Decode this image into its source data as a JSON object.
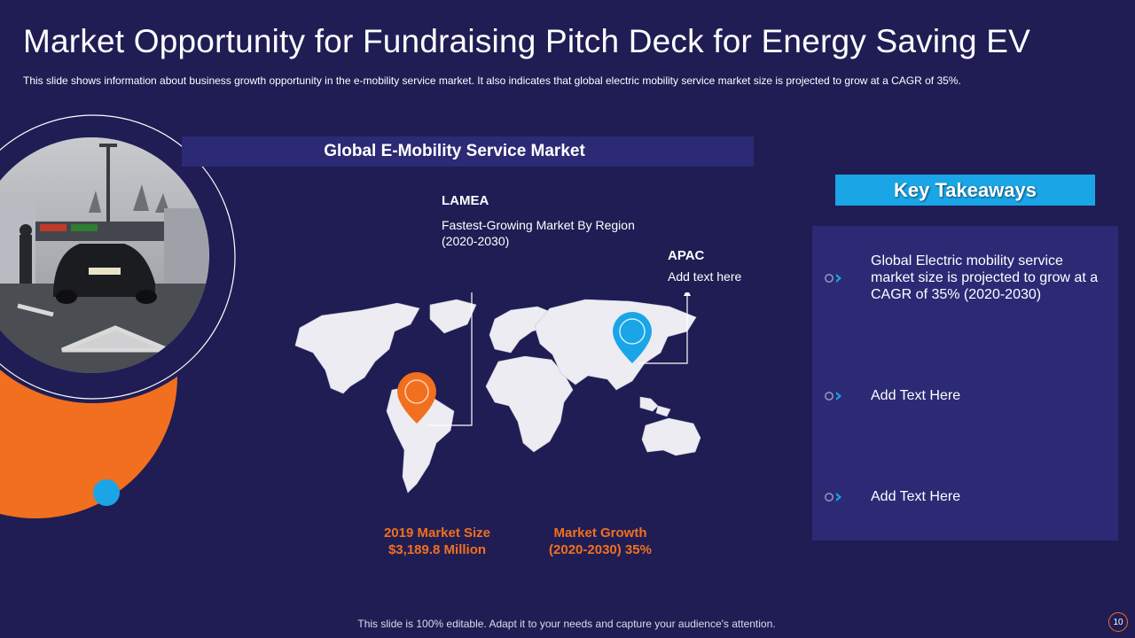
{
  "slide": {
    "title": "Market Opportunity for Fundraising Pitch Deck for Energy Saving EV",
    "subtitle": "This slide shows information about business growth opportunity in the e-mobility service market. It also indicates that global electric mobility service market size is projected to grow at a CAGR of 35%."
  },
  "map_panel": {
    "heading": "Global E-Mobility  Service Market",
    "lamea": {
      "title": "LAMEA",
      "line1": "Fastest-Growing Market By Region",
      "line2": "(2020-2030)"
    },
    "apac": {
      "title": "APAC",
      "text": "Add text here"
    }
  },
  "stats": {
    "market_size": {
      "line1": "2019 Market Size",
      "line2": "$3,189.8 Million"
    },
    "market_growth": {
      "line1": "Market Growth",
      "line2": "(2020-2030) 35%"
    }
  },
  "takeaways": {
    "header": "Key Takeaways",
    "items": [
      {
        "text": "Global Electric mobility service market size is projected to grow at a CAGR of 35% (2020-2030)",
        "icon": "chevron-right-icon"
      },
      {
        "text": "Add Text Here",
        "icon": "chevron-right-icon"
      },
      {
        "text": "Add Text Here",
        "icon": "chevron-right-icon"
      }
    ]
  },
  "footer": {
    "note": "This slide is 100% editable. Adapt it to your needs and capture your audience's attention.",
    "page": "10"
  },
  "colors": {
    "background": "#1f1d54",
    "panel": "#2c2a75",
    "orange": "#f26f1f",
    "blue": "#1aa5e6"
  }
}
